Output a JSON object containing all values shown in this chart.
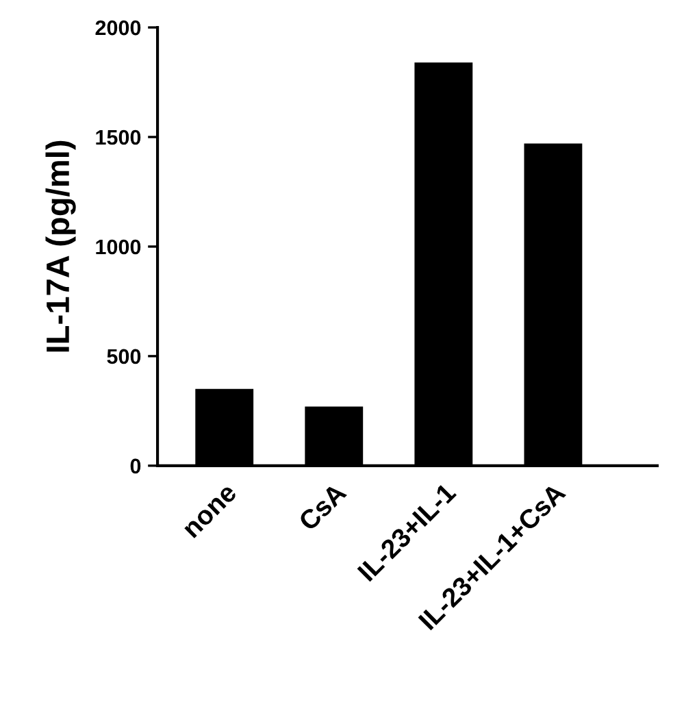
{
  "chart_data": {
    "type": "bar",
    "ylabel": "IL-17A (pg/ml)",
    "categories": [
      "none",
      "CsA",
      "IL-23+IL-1",
      "IL-23+IL-1+CsA"
    ],
    "values": [
      350,
      270,
      1840,
      1470
    ],
    "color": "#000000",
    "ylim": [
      0,
      2000
    ],
    "yticks": [
      0,
      500,
      1000,
      1500,
      2000
    ],
    "grid": false,
    "legend": false
  }
}
